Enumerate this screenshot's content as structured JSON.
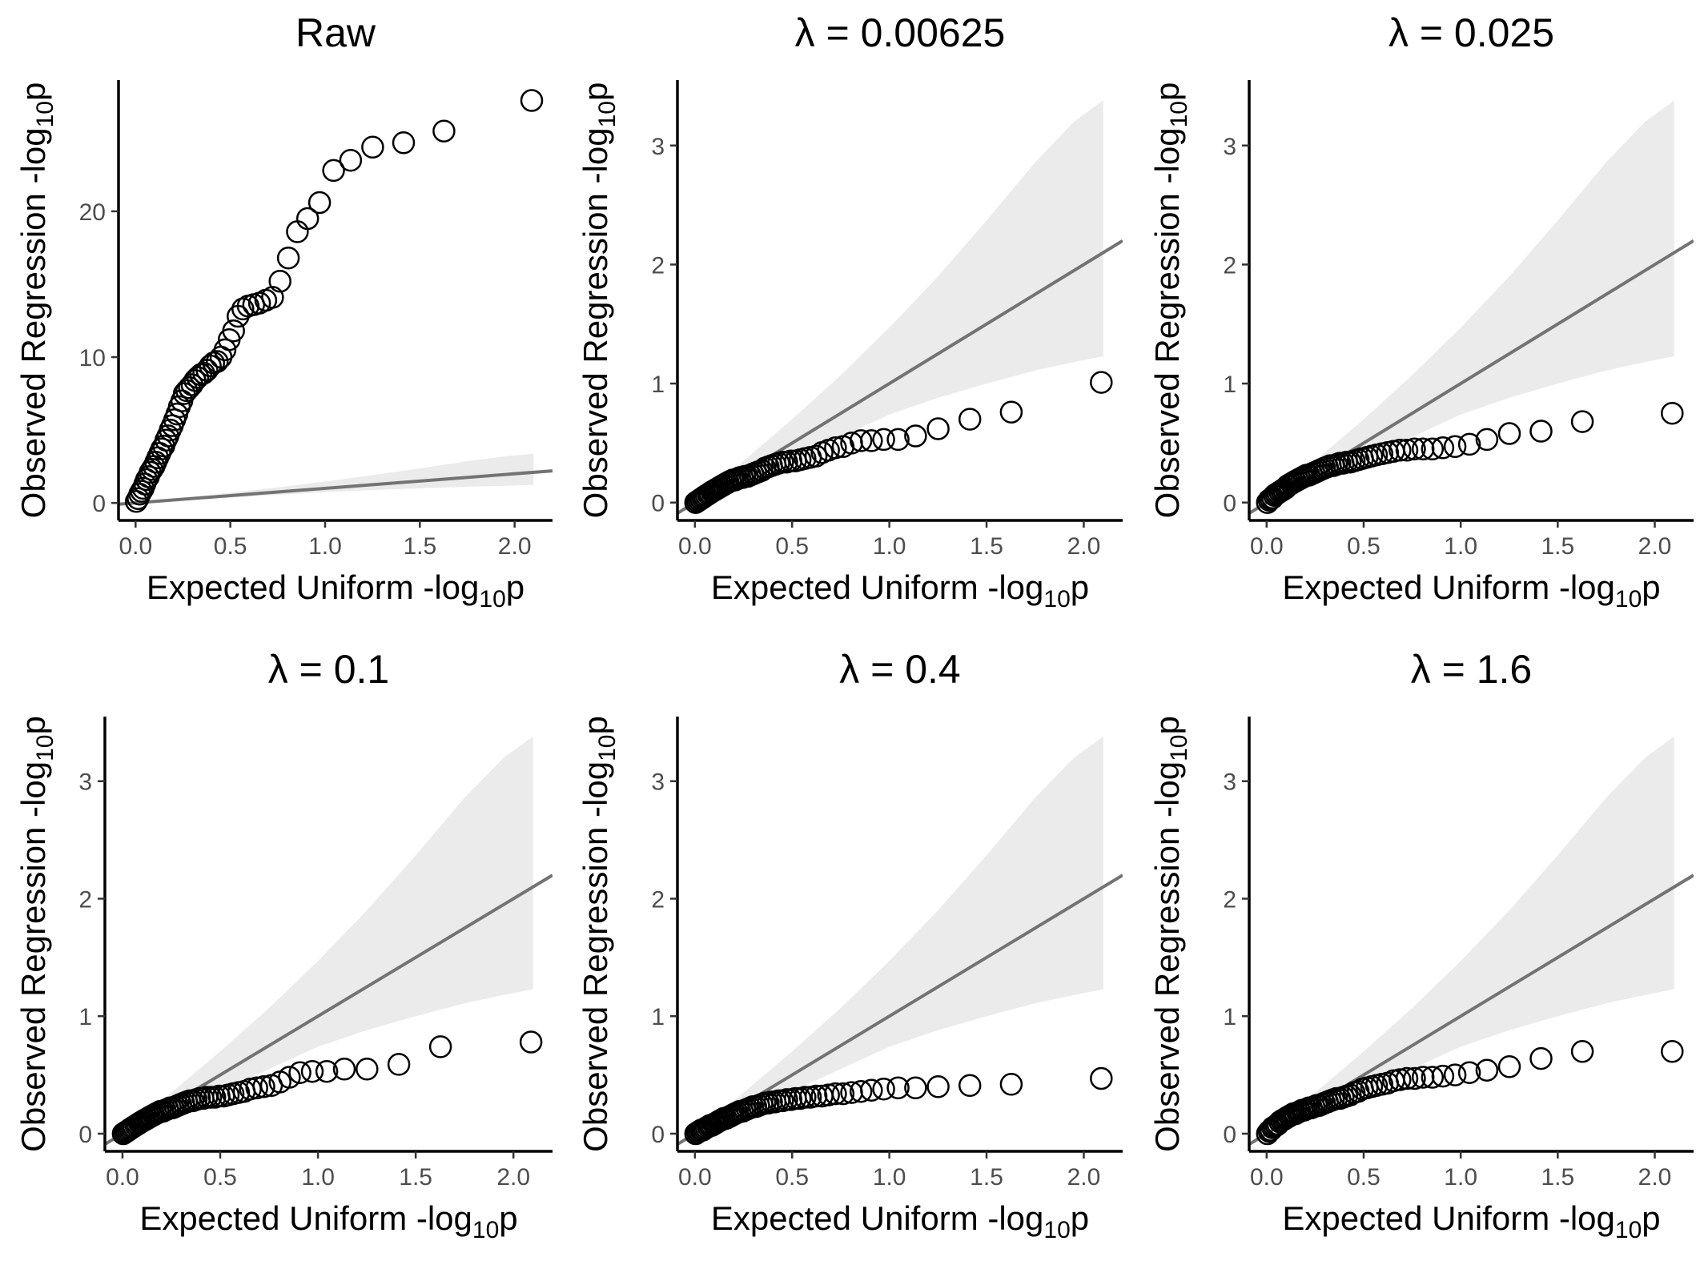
{
  "colors": {
    "background": "#ffffff",
    "points": "#000000",
    "reference_line": "#737373",
    "confidence_band": "#ebebeb",
    "tick_labels": "#4d4d4d"
  },
  "chart_data": [
    {
      "type": "scatter",
      "title": "Raw",
      "xlabel_main": "Expected Uniform -log",
      "xlabel_sub": "10",
      "xlabel_tail": "p",
      "ylabel_main": "Observed Regression -log",
      "ylabel_sub": "10",
      "ylabel_tail": "p",
      "xlim": [
        -0.09,
        2.2
      ],
      "ylim": [
        -1.2,
        29
      ],
      "xticks": [
        0.0,
        0.5,
        1.0,
        1.5,
        2.0
      ],
      "xtick_labels": [
        "0.0",
        "0.5",
        "1.0",
        "1.5",
        "2.0"
      ],
      "yticks": [
        0,
        10,
        20
      ],
      "ytick_labels": [
        "0",
        "10",
        "20"
      ],
      "reference_line": "y = x",
      "grid": false,
      "x": [
        0.004,
        0.013,
        0.022,
        0.031,
        0.04,
        0.049,
        0.058,
        0.068,
        0.077,
        0.087,
        0.097,
        0.107,
        0.117,
        0.128,
        0.138,
        0.149,
        0.16,
        0.171,
        0.183,
        0.194,
        0.206,
        0.218,
        0.231,
        0.244,
        0.257,
        0.27,
        0.284,
        0.298,
        0.313,
        0.328,
        0.344,
        0.36,
        0.377,
        0.394,
        0.412,
        0.431,
        0.451,
        0.472,
        0.494,
        0.517,
        0.541,
        0.566,
        0.594,
        0.623,
        0.654,
        0.687,
        0.723,
        0.762,
        0.806,
        0.854,
        0.908,
        0.971,
        1.045,
        1.135,
        1.251,
        1.414,
        1.627,
        2.09
      ],
      "y": [
        0.1,
        0.3,
        0.6,
        0.8,
        1.0,
        1.3,
        1.6,
        1.8,
        2.1,
        2.3,
        2.5,
        2.8,
        3.1,
        3.4,
        3.7,
        3.9,
        4.3,
        4.6,
        5.0,
        5.3,
        5.7,
        6.1,
        6.6,
        7.0,
        7.5,
        7.7,
        7.9,
        8.1,
        8.4,
        8.6,
        8.8,
        8.9,
        9.1,
        9.4,
        9.6,
        9.7,
        10.0,
        10.5,
        11.2,
        11.8,
        12.8,
        13.3,
        13.5,
        13.6,
        13.7,
        13.9,
        14.1,
        15.2,
        16.8,
        18.6,
        19.5,
        20.6,
        22.8,
        23.5,
        24.4,
        24.7,
        25.5,
        27.6
      ],
      "band_x": [
        0.0,
        0.25,
        0.5,
        0.75,
        1.0,
        1.25,
        1.5,
        1.75,
        1.95,
        2.1
      ],
      "band_lower": [
        0.0,
        0.17,
        0.36,
        0.55,
        0.74,
        0.88,
        1.0,
        1.11,
        1.18,
        1.23
      ],
      "band_upper": [
        0.0,
        0.35,
        0.7,
        1.07,
        1.47,
        1.9,
        2.37,
        2.86,
        3.2,
        3.38
      ]
    },
    {
      "type": "scatter",
      "title": "λ = 0.00625",
      "xlabel_main": "Expected Uniform -log",
      "xlabel_sub": "10",
      "xlabel_tail": "p",
      "ylabel_main": "Observed Regression -log",
      "ylabel_sub": "10",
      "ylabel_tail": "p",
      "xlim": [
        -0.09,
        2.2
      ],
      "ylim": [
        -0.15,
        3.55
      ],
      "xticks": [
        0.0,
        0.5,
        1.0,
        1.5,
        2.0
      ],
      "xtick_labels": [
        "0.0",
        "0.5",
        "1.0",
        "1.5",
        "2.0"
      ],
      "yticks": [
        0,
        1,
        2,
        3
      ],
      "ytick_labels": [
        "0",
        "1",
        "2",
        "3"
      ],
      "reference_line": "y = x",
      "grid": false,
      "x": [
        0.004,
        0.013,
        0.022,
        0.031,
        0.04,
        0.049,
        0.058,
        0.068,
        0.077,
        0.087,
        0.097,
        0.107,
        0.117,
        0.128,
        0.138,
        0.149,
        0.16,
        0.171,
        0.183,
        0.194,
        0.206,
        0.218,
        0.231,
        0.244,
        0.257,
        0.27,
        0.284,
        0.298,
        0.313,
        0.328,
        0.344,
        0.36,
        0.377,
        0.394,
        0.412,
        0.431,
        0.451,
        0.472,
        0.494,
        0.517,
        0.541,
        0.566,
        0.594,
        0.623,
        0.654,
        0.687,
        0.723,
        0.762,
        0.806,
        0.854,
        0.908,
        0.971,
        1.045,
        1.135,
        1.251,
        1.414,
        1.627,
        2.09
      ],
      "y": [
        0.0,
        0.01,
        0.02,
        0.03,
        0.04,
        0.05,
        0.06,
        0.07,
        0.08,
        0.09,
        0.1,
        0.11,
        0.12,
        0.13,
        0.14,
        0.15,
        0.16,
        0.17,
        0.18,
        0.19,
        0.19,
        0.2,
        0.21,
        0.21,
        0.22,
        0.22,
        0.23,
        0.24,
        0.25,
        0.26,
        0.27,
        0.29,
        0.3,
        0.31,
        0.32,
        0.33,
        0.34,
        0.34,
        0.35,
        0.35,
        0.36,
        0.37,
        0.38,
        0.39,
        0.42,
        0.44,
        0.46,
        0.47,
        0.5,
        0.52,
        0.52,
        0.53,
        0.53,
        0.56,
        0.62,
        0.7,
        0.76,
        1.01
      ],
      "band_x": [
        0.0,
        0.25,
        0.5,
        0.75,
        1.0,
        1.25,
        1.5,
        1.75,
        1.95,
        2.1
      ],
      "band_lower": [
        0.0,
        0.17,
        0.36,
        0.55,
        0.74,
        0.88,
        1.0,
        1.11,
        1.18,
        1.23
      ],
      "band_upper": [
        0.0,
        0.35,
        0.7,
        1.07,
        1.47,
        1.9,
        2.37,
        2.86,
        3.2,
        3.38
      ]
    },
    {
      "type": "scatter",
      "title": "λ = 0.025",
      "xlabel_main": "Expected Uniform -log",
      "xlabel_sub": "10",
      "xlabel_tail": "p",
      "ylabel_main": "Observed Regression -log",
      "ylabel_sub": "10",
      "ylabel_tail": "p",
      "xlim": [
        -0.09,
        2.2
      ],
      "ylim": [
        -0.15,
        3.55
      ],
      "xticks": [
        0.0,
        0.5,
        1.0,
        1.5,
        2.0
      ],
      "xtick_labels": [
        "0.0",
        "0.5",
        "1.0",
        "1.5",
        "2.0"
      ],
      "yticks": [
        0,
        1,
        2,
        3
      ],
      "ytick_labels": [
        "0",
        "1",
        "2",
        "3"
      ],
      "reference_line": "y = x",
      "grid": false,
      "x": [
        0.004,
        0.013,
        0.022,
        0.031,
        0.04,
        0.049,
        0.058,
        0.068,
        0.077,
        0.087,
        0.097,
        0.107,
        0.117,
        0.128,
        0.138,
        0.149,
        0.16,
        0.171,
        0.183,
        0.194,
        0.206,
        0.218,
        0.231,
        0.244,
        0.257,
        0.27,
        0.284,
        0.298,
        0.313,
        0.328,
        0.344,
        0.36,
        0.377,
        0.394,
        0.412,
        0.431,
        0.451,
        0.472,
        0.494,
        0.517,
        0.541,
        0.566,
        0.594,
        0.623,
        0.654,
        0.687,
        0.723,
        0.762,
        0.806,
        0.854,
        0.908,
        0.971,
        1.045,
        1.135,
        1.251,
        1.414,
        1.627,
        2.09
      ],
      "y": [
        0.0,
        0.02,
        0.03,
        0.04,
        0.06,
        0.07,
        0.08,
        0.09,
        0.1,
        0.11,
        0.12,
        0.14,
        0.15,
        0.16,
        0.17,
        0.18,
        0.19,
        0.2,
        0.21,
        0.22,
        0.23,
        0.23,
        0.24,
        0.25,
        0.26,
        0.27,
        0.28,
        0.29,
        0.3,
        0.31,
        0.31,
        0.32,
        0.33,
        0.33,
        0.34,
        0.34,
        0.35,
        0.36,
        0.37,
        0.38,
        0.39,
        0.4,
        0.41,
        0.42,
        0.43,
        0.44,
        0.44,
        0.45,
        0.45,
        0.45,
        0.46,
        0.47,
        0.49,
        0.53,
        0.58,
        0.6,
        0.68,
        0.75
      ],
      "band_x": [
        0.0,
        0.25,
        0.5,
        0.75,
        1.0,
        1.25,
        1.5,
        1.75,
        1.95,
        2.1
      ],
      "band_lower": [
        0.0,
        0.17,
        0.36,
        0.55,
        0.74,
        0.88,
        1.0,
        1.11,
        1.18,
        1.23
      ],
      "band_upper": [
        0.0,
        0.35,
        0.7,
        1.07,
        1.47,
        1.9,
        2.37,
        2.86,
        3.2,
        3.38
      ]
    },
    {
      "type": "scatter",
      "title": "λ = 0.1",
      "xlabel_main": "Expected Uniform -log",
      "xlabel_sub": "10",
      "xlabel_tail": "p",
      "ylabel_main": "Observed Regression -log",
      "ylabel_sub": "10",
      "ylabel_tail": "p",
      "xlim": [
        -0.09,
        2.2
      ],
      "ylim": [
        -0.15,
        3.55
      ],
      "xticks": [
        0.0,
        0.5,
        1.0,
        1.5,
        2.0
      ],
      "xtick_labels": [
        "0.0",
        "0.5",
        "1.0",
        "1.5",
        "2.0"
      ],
      "yticks": [
        0,
        1,
        2,
        3
      ],
      "ytick_labels": [
        "0",
        "1",
        "2",
        "3"
      ],
      "reference_line": "y = x",
      "grid": false,
      "x": [
        0.004,
        0.013,
        0.022,
        0.031,
        0.04,
        0.049,
        0.058,
        0.068,
        0.077,
        0.087,
        0.097,
        0.107,
        0.117,
        0.128,
        0.138,
        0.149,
        0.16,
        0.171,
        0.183,
        0.194,
        0.206,
        0.218,
        0.231,
        0.244,
        0.257,
        0.27,
        0.284,
        0.298,
        0.313,
        0.328,
        0.344,
        0.36,
        0.377,
        0.394,
        0.412,
        0.431,
        0.451,
        0.472,
        0.494,
        0.517,
        0.541,
        0.566,
        0.594,
        0.623,
        0.654,
        0.687,
        0.723,
        0.762,
        0.806,
        0.854,
        0.908,
        0.971,
        1.045,
        1.135,
        1.251,
        1.414,
        1.627,
        2.09
      ],
      "y": [
        0.0,
        0.01,
        0.02,
        0.03,
        0.04,
        0.05,
        0.06,
        0.07,
        0.08,
        0.09,
        0.1,
        0.11,
        0.12,
        0.13,
        0.14,
        0.15,
        0.16,
        0.17,
        0.18,
        0.19,
        0.19,
        0.2,
        0.21,
        0.22,
        0.22,
        0.23,
        0.24,
        0.25,
        0.26,
        0.27,
        0.28,
        0.28,
        0.29,
        0.3,
        0.3,
        0.31,
        0.31,
        0.31,
        0.32,
        0.32,
        0.33,
        0.34,
        0.35,
        0.36,
        0.38,
        0.39,
        0.4,
        0.41,
        0.44,
        0.48,
        0.52,
        0.53,
        0.53,
        0.55,
        0.55,
        0.59,
        0.74,
        0.78
      ],
      "band_x": [
        0.0,
        0.25,
        0.5,
        0.75,
        1.0,
        1.25,
        1.5,
        1.75,
        1.95,
        2.1
      ],
      "band_lower": [
        0.0,
        0.17,
        0.36,
        0.55,
        0.74,
        0.88,
        1.0,
        1.11,
        1.18,
        1.23
      ],
      "band_upper": [
        0.0,
        0.35,
        0.7,
        1.07,
        1.47,
        1.9,
        2.37,
        2.86,
        3.2,
        3.38
      ]
    },
    {
      "type": "scatter",
      "title": "λ = 0.4",
      "xlabel_main": "Expected Uniform -log",
      "xlabel_sub": "10",
      "xlabel_tail": "p",
      "ylabel_main": "Observed Regression -log",
      "ylabel_sub": "10",
      "ylabel_tail": "p",
      "xlim": [
        -0.09,
        2.2
      ],
      "ylim": [
        -0.15,
        3.55
      ],
      "xticks": [
        0.0,
        0.5,
        1.0,
        1.5,
        2.0
      ],
      "xtick_labels": [
        "0.0",
        "0.5",
        "1.0",
        "1.5",
        "2.0"
      ],
      "yticks": [
        0,
        1,
        2,
        3
      ],
      "ytick_labels": [
        "0",
        "1",
        "2",
        "3"
      ],
      "reference_line": "y = x",
      "grid": false,
      "x": [
        0.004,
        0.013,
        0.022,
        0.031,
        0.04,
        0.049,
        0.058,
        0.068,
        0.077,
        0.087,
        0.097,
        0.107,
        0.117,
        0.128,
        0.138,
        0.149,
        0.16,
        0.171,
        0.183,
        0.194,
        0.206,
        0.218,
        0.231,
        0.244,
        0.257,
        0.27,
        0.284,
        0.298,
        0.313,
        0.328,
        0.344,
        0.36,
        0.377,
        0.394,
        0.412,
        0.431,
        0.451,
        0.472,
        0.494,
        0.517,
        0.541,
        0.566,
        0.594,
        0.623,
        0.654,
        0.687,
        0.723,
        0.762,
        0.806,
        0.854,
        0.908,
        0.971,
        1.045,
        1.135,
        1.251,
        1.414,
        1.627,
        2.09
      ],
      "y": [
        0.0,
        0.01,
        0.02,
        0.03,
        0.03,
        0.04,
        0.05,
        0.06,
        0.07,
        0.07,
        0.08,
        0.09,
        0.1,
        0.11,
        0.12,
        0.13,
        0.13,
        0.14,
        0.15,
        0.16,
        0.17,
        0.18,
        0.19,
        0.19,
        0.2,
        0.21,
        0.22,
        0.23,
        0.23,
        0.24,
        0.25,
        0.26,
        0.26,
        0.27,
        0.27,
        0.28,
        0.28,
        0.29,
        0.29,
        0.3,
        0.3,
        0.31,
        0.31,
        0.32,
        0.32,
        0.33,
        0.34,
        0.34,
        0.35,
        0.36,
        0.37,
        0.38,
        0.39,
        0.39,
        0.4,
        0.41,
        0.42,
        0.47
      ],
      "band_x": [
        0.0,
        0.25,
        0.5,
        0.75,
        1.0,
        1.25,
        1.5,
        1.75,
        1.95,
        2.1
      ],
      "band_lower": [
        0.0,
        0.17,
        0.36,
        0.55,
        0.74,
        0.88,
        1.0,
        1.11,
        1.18,
        1.23
      ],
      "band_upper": [
        0.0,
        0.35,
        0.7,
        1.07,
        1.47,
        1.9,
        2.37,
        2.86,
        3.2,
        3.38
      ]
    },
    {
      "type": "scatter",
      "title": "λ = 1.6",
      "xlabel_main": "Expected Uniform -log",
      "xlabel_sub": "10",
      "xlabel_tail": "p",
      "ylabel_main": "Observed Regression -log",
      "ylabel_sub": "10",
      "ylabel_tail": "p",
      "xlim": [
        -0.09,
        2.2
      ],
      "ylim": [
        -0.15,
        3.55
      ],
      "xticks": [
        0.0,
        0.5,
        1.0,
        1.5,
        2.0
      ],
      "xtick_labels": [
        "0.0",
        "0.5",
        "1.0",
        "1.5",
        "2.0"
      ],
      "yticks": [
        0,
        1,
        2,
        3
      ],
      "ytick_labels": [
        "0",
        "1",
        "2",
        "3"
      ],
      "reference_line": "y = x",
      "grid": false,
      "x": [
        0.004,
        0.013,
        0.022,
        0.031,
        0.04,
        0.049,
        0.058,
        0.068,
        0.077,
        0.087,
        0.097,
        0.107,
        0.117,
        0.128,
        0.138,
        0.149,
        0.16,
        0.171,
        0.183,
        0.194,
        0.206,
        0.218,
        0.231,
        0.244,
        0.257,
        0.27,
        0.284,
        0.298,
        0.313,
        0.328,
        0.344,
        0.36,
        0.377,
        0.394,
        0.412,
        0.431,
        0.451,
        0.472,
        0.494,
        0.517,
        0.541,
        0.566,
        0.594,
        0.623,
        0.654,
        0.687,
        0.723,
        0.762,
        0.806,
        0.854,
        0.908,
        0.971,
        1.045,
        1.135,
        1.251,
        1.414,
        1.627,
        2.09
      ],
      "y": [
        0.0,
        0.02,
        0.03,
        0.05,
        0.06,
        0.07,
        0.08,
        0.1,
        0.11,
        0.12,
        0.13,
        0.14,
        0.15,
        0.16,
        0.17,
        0.17,
        0.18,
        0.19,
        0.2,
        0.2,
        0.21,
        0.22,
        0.22,
        0.23,
        0.24,
        0.24,
        0.25,
        0.26,
        0.27,
        0.28,
        0.29,
        0.3,
        0.3,
        0.31,
        0.32,
        0.33,
        0.35,
        0.36,
        0.38,
        0.39,
        0.4,
        0.41,
        0.42,
        0.43,
        0.45,
        0.46,
        0.47,
        0.47,
        0.48,
        0.48,
        0.49,
        0.5,
        0.52,
        0.54,
        0.57,
        0.64,
        0.7,
        0.7
      ],
      "band_x": [
        0.0,
        0.25,
        0.5,
        0.75,
        1.0,
        1.25,
        1.5,
        1.75,
        1.95,
        2.1
      ],
      "band_lower": [
        0.0,
        0.17,
        0.36,
        0.55,
        0.74,
        0.88,
        1.0,
        1.11,
        1.18,
        1.23
      ],
      "band_upper": [
        0.0,
        0.35,
        0.7,
        1.07,
        1.47,
        1.9,
        2.37,
        2.86,
        3.2,
        3.38
      ]
    }
  ]
}
